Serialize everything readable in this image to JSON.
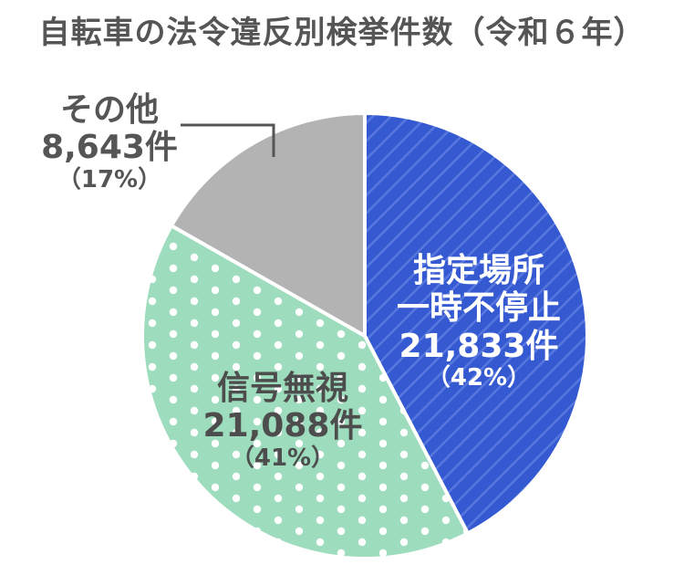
{
  "title": "自転車の法令違反別検挙件数（令和６年）",
  "chart_data": {
    "type": "pie",
    "title": "自転車の法令違反別検挙件数（令和６年）",
    "categories": [
      "指定場所一時不停止",
      "信号無視",
      "その他"
    ],
    "values": [
      21833,
      21088,
      8643
    ],
    "percentages": [
      42,
      41,
      17
    ],
    "unit": "件",
    "start_angle": "12 o'clock, clockwise",
    "colors": [
      "#3459d0",
      "#9ddcbc",
      "#b3b3b3"
    ],
    "patterns": [
      "diagonal-stripes",
      "white-dots",
      "solid"
    ],
    "legend": "none (direct labels)"
  },
  "labels": {
    "blue": {
      "name_line1": "指定場所",
      "name_line2": "一時不停止",
      "count": "21,833件",
      "pct": "（42%）"
    },
    "green": {
      "name": "信号無視",
      "count": "21,088件",
      "pct": "（41%）"
    },
    "other": {
      "name": "その他",
      "count": "8,643件",
      "pct": "（17%）"
    }
  }
}
